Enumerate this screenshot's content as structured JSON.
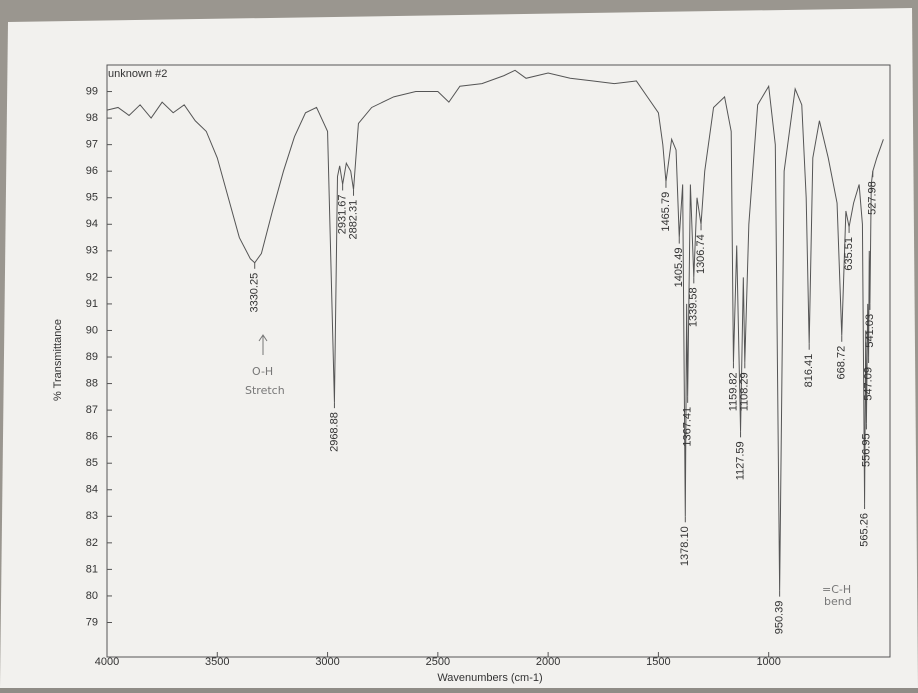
{
  "chart_data": {
    "type": "line",
    "title": "unknown #2",
    "x_label": "Wavenumbers (cm-1)",
    "y_label": "% Transmittance",
    "xlim": [
      4000,
      450
    ],
    "ylim": [
      77.7,
      100
    ],
    "xticks": [
      4000,
      3500,
      3000,
      2500,
      2000,
      1500,
      1000
    ],
    "yticks": [
      79,
      80,
      81,
      82,
      83,
      84,
      85,
      86,
      87,
      88,
      89,
      90,
      91,
      92,
      93,
      94,
      95,
      96,
      97,
      98,
      99
    ],
    "color": "#555555",
    "x": [
      4000,
      3950,
      3900,
      3850,
      3800,
      3750,
      3700,
      3650,
      3600,
      3550,
      3500,
      3450,
      3400,
      3350,
      3330.25,
      3300,
      3250,
      3200,
      3150,
      3100,
      3050,
      3000,
      2968.88,
      2955,
      2945,
      2931.67,
      2915,
      2895,
      2882.31,
      2860,
      2800,
      2700,
      2600,
      2500,
      2450,
      2400,
      2300,
      2200,
      2150,
      2100,
      2000,
      1900,
      1800,
      1700,
      1600,
      1550,
      1500,
      1480,
      1465.79,
      1440,
      1420,
      1405.49,
      1390,
      1378.1,
      1372,
      1367.41,
      1355,
      1339.58,
      1325,
      1306.74,
      1290,
      1250,
      1200,
      1170,
      1159.82,
      1145,
      1127.59,
      1115,
      1108.29,
      1090,
      1050,
      1000,
      970,
      950.39,
      930,
      880,
      850,
      830,
      816.41,
      800,
      770,
      730,
      690,
      668.72,
      650,
      635.51,
      615,
      590,
      575,
      565.26,
      560,
      556.95,
      551,
      547.09,
      544,
      541.03,
      535,
      527.98,
      510,
      480
    ],
    "values": [
      98.3,
      98.4,
      98.1,
      98.5,
      98.0,
      98.6,
      98.2,
      98.5,
      97.9,
      97.5,
      96.5,
      95.0,
      93.5,
      92.7,
      92.55,
      92.9,
      94.5,
      96.0,
      97.3,
      98.2,
      98.4,
      97.5,
      87.3,
      95.8,
      96.2,
      95.5,
      96.3,
      96.0,
      95.3,
      97.8,
      98.4,
      98.8,
      99.0,
      99.0,
      98.6,
      99.2,
      99.3,
      99.6,
      99.8,
      99.5,
      99.7,
      99.5,
      99.4,
      99.3,
      99.4,
      98.8,
      98.2,
      97.0,
      95.6,
      97.2,
      96.8,
      93.5,
      95.5,
      83.0,
      91,
      87.5,
      95.5,
      92.0,
      95,
      94.0,
      96,
      98.4,
      98.8,
      97.5,
      88.8,
      93.2,
      86.2,
      92,
      88.8,
      94,
      98.5,
      99.2,
      97,
      80.2,
      96,
      99.1,
      98.5,
      95,
      89.5,
      96.5,
      97.9,
      96.5,
      94.8,
      89.8,
      94.5,
      93.9,
      94.8,
      95.5,
      94,
      83.5,
      90,
      86.5,
      91,
      89,
      93,
      91,
      95.5,
      96,
      96.5,
      97.2
    ],
    "peaks": {
      "x": [
        3330.25,
        2968.88,
        2931.67,
        2882.31,
        1465.79,
        1405.49,
        1378.1,
        1367.41,
        1339.58,
        1306.74,
        1159.82,
        1127.59,
        1108.29,
        950.39,
        816.41,
        668.72,
        635.51,
        565.26,
        556.95,
        547.09,
        541.03,
        527.98
      ],
      "values": [
        92.55,
        87.3,
        95.5,
        95.3,
        95.6,
        93.5,
        83.0,
        87.5,
        92.0,
        94.0,
        88.8,
        86.2,
        88.8,
        80.2,
        89.5,
        89.8,
        93.9,
        83.5,
        86.5,
        89,
        91,
        96
      ],
      "labels": [
        "3330.25",
        "2968.88",
        "2931.67",
        "2882.31",
        "1465.79",
        "1405.49",
        "1378.10",
        "1367.41",
        "1339.58",
        "1306.74",
        "1159.82",
        "1127.59",
        "1108.29",
        "950.39",
        "816.41",
        "668.72",
        "635.51",
        "565.26",
        "556.95",
        "547.09",
        "541.03",
        "527.98"
      ]
    },
    "annotations": [
      "O-H",
      "Stretch",
      "=C-H",
      "bend"
    ]
  }
}
